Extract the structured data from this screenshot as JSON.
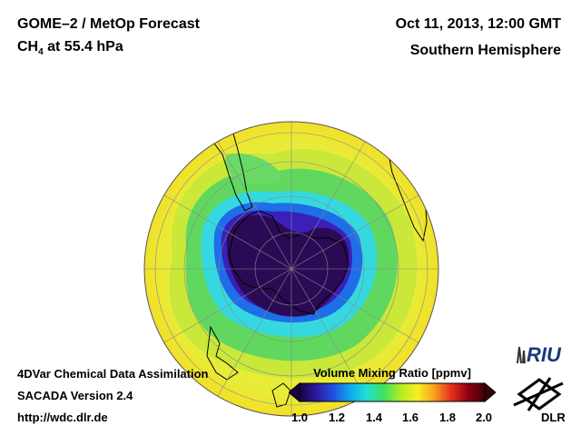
{
  "header": {
    "title_line1": "GOME–2 / MetOp Forecast",
    "title_line2_main": "CH",
    "title_line2_sub": "4",
    "title_line2_rest": " at 55.4 hPa",
    "date": "Oct 11, 2013, 12:00 GMT",
    "region": "Southern Hemisphere"
  },
  "footer": {
    "line1": "4DVar Chemical Data Assimilation",
    "line2": "SACADA Version 2.4",
    "line3": "http://wdc.dlr.de"
  },
  "colorbar": {
    "title": "Volume Mixing Ratio [ppmv]",
    "ticks": [
      "1.0",
      "1.2",
      "1.4",
      "1.6",
      "1.8",
      "2.0"
    ],
    "min": 1.0,
    "max": 2.0,
    "colors": [
      "#1a0040",
      "#2b1aa0",
      "#2050e0",
      "#10a8f0",
      "#20e0d0",
      "#40e060",
      "#b0ec20",
      "#f8f020",
      "#f8a020",
      "#e83020",
      "#900010",
      "#3a0008"
    ]
  },
  "logos": {
    "riu": "RIU",
    "dlr": "DLR"
  }
}
